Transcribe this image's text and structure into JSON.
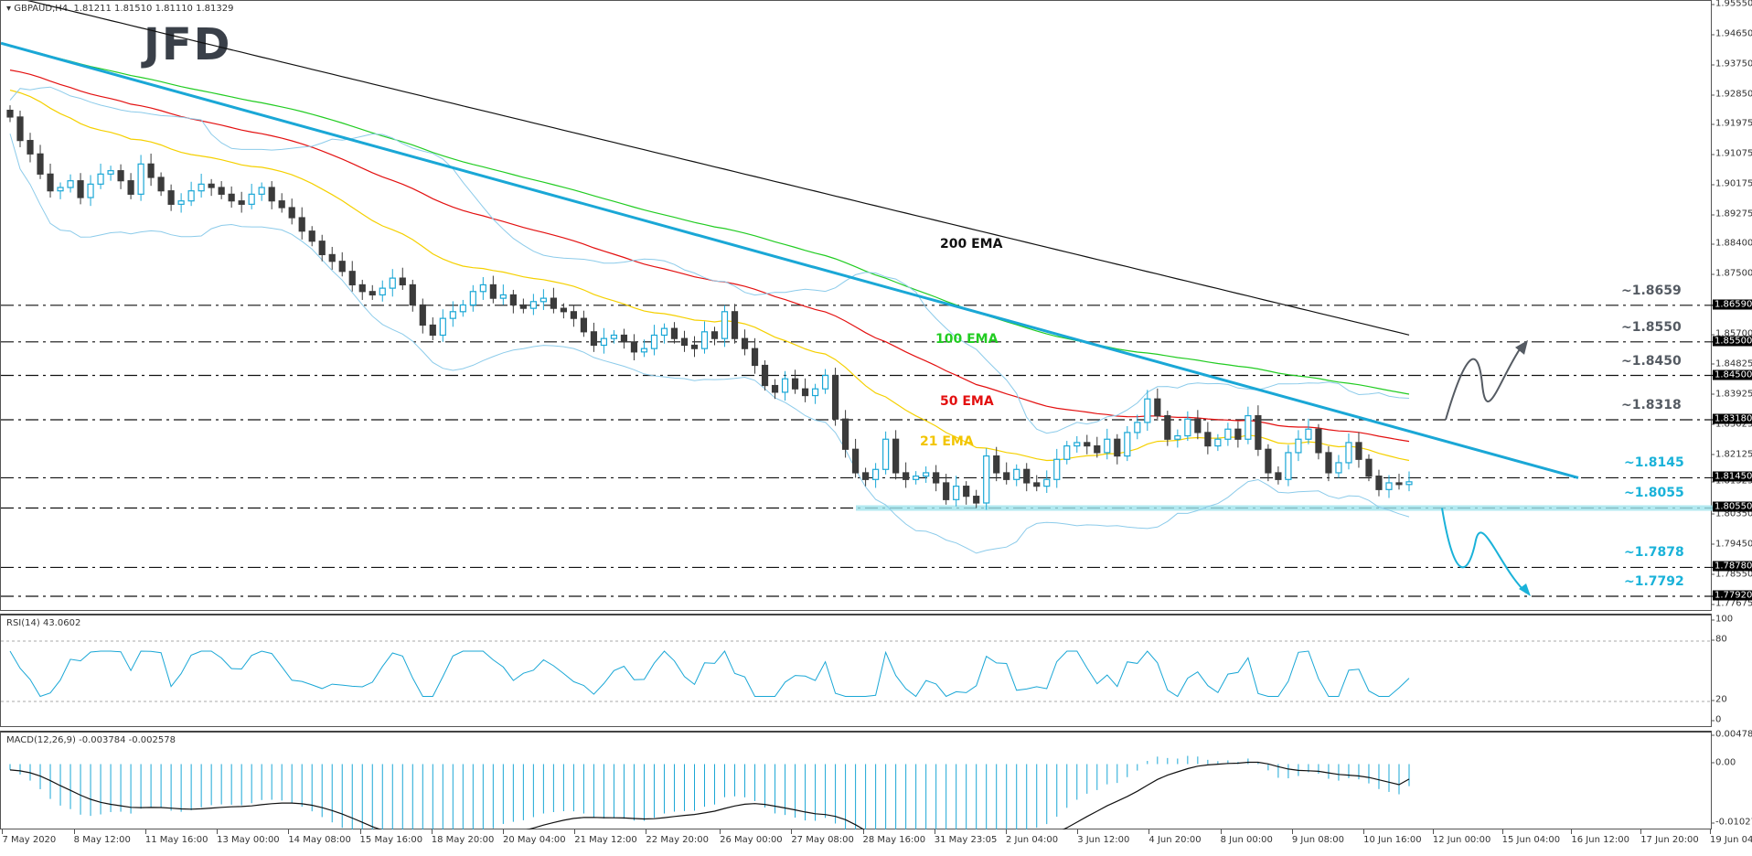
{
  "header": {
    "symbol": "GBPAUD,H4",
    "ohlc": "1.81211 1.81510 1.81110 1.81329",
    "logo": "JFD"
  },
  "chart_data": {
    "type": "candlestick",
    "title": "GBPAUD,H4",
    "last_ohlc": {
      "open": 1.81211,
      "high": 1.8151,
      "low": 1.8111,
      "close": 1.81329
    },
    "price_axis": {
      "range": [
        1.77675,
        1.9555
      ],
      "ticks": [
        "1.95550",
        "1.94650",
        "1.93750",
        "1.92850",
        "1.91975",
        "1.91075",
        "1.90175",
        "1.89275",
        "1.88400",
        "1.87500",
        "1.85700",
        "1.84825",
        "1.83925",
        "1.83025",
        "1.82125",
        "1.81325",
        "1.80350",
        "1.79450",
        "1.78550",
        "1.77675"
      ],
      "highlighted": [
        "1.86590",
        "1.85500",
        "1.84500",
        "1.83180",
        "1.81450",
        "1.80550",
        "1.78780",
        "1.77920"
      ]
    },
    "x_axis_labels": [
      "7 May 2020",
      "8 May 12:00",
      "11 May 16:00",
      "13 May 00:00",
      "14 May 08:00",
      "15 May 16:00",
      "18 May 20:00",
      "20 May 04:00",
      "21 May 12:00",
      "22 May 20:00",
      "26 May 00:00",
      "27 May 08:00",
      "28 May 16:00",
      "31 May 23:05",
      "2 Jun 04:00",
      "3 Jun 12:00",
      "4 Jun 20:00",
      "8 Jun 00:00",
      "9 Jun 08:00",
      "10 Jun 16:00",
      "12 Jun 00:00",
      "15 Jun 04:00",
      "16 Jun 12:00",
      "17 Jun 20:00",
      "19 Jun 04:00"
    ],
    "levels": [
      {
        "label": "~1.8659",
        "value": 1.8659,
        "color": "#555b63"
      },
      {
        "label": "~1.8550",
        "value": 1.855,
        "color": "#555b63"
      },
      {
        "label": "~1.8450",
        "value": 1.845,
        "color": "#555b63"
      },
      {
        "label": "~1.8318",
        "value": 1.8318,
        "color": "#555b63"
      },
      {
        "label": "~1.8145",
        "value": 1.8145,
        "color": "#1ab2d9"
      },
      {
        "label": "~1.8055",
        "value": 1.8055,
        "color": "#1ab2d9"
      },
      {
        "label": "~1.7878",
        "value": 1.7878,
        "color": "#1ab2d9"
      },
      {
        "label": "~1.7792",
        "value": 1.7792,
        "color": "#1ab2d9"
      }
    ],
    "indicators": {
      "ema": [
        {
          "name": "21 EMA",
          "color": "#f5d000"
        },
        {
          "name": "50 EMA",
          "color": "#e31010"
        },
        {
          "name": "100 EMA",
          "color": "#22cc22"
        },
        {
          "name": "200 EMA",
          "color": "#111111"
        }
      ],
      "bollinger_color": "#8ccbea",
      "downtrend_line": {
        "color": "#1aa7d6",
        "from_price": 1.944,
        "to_price": 1.8145
      }
    },
    "scenarios": {
      "bullish_arrow": {
        "color": "#555b63",
        "from": 1.8318,
        "via": 1.845,
        "to": 1.855
      },
      "bearish_arrow": {
        "color": "#1ab2d9",
        "from": 1.8055,
        "via": 1.7878,
        "to": 1.7792
      }
    },
    "close_series": [
      1.922,
      1.915,
      1.911,
      1.905,
      1.9,
      1.901,
      1.903,
      1.898,
      1.902,
      1.905,
      1.906,
      1.903,
      1.899,
      1.908,
      1.904,
      1.9,
      1.896,
      1.897,
      1.9,
      1.902,
      1.901,
      1.899,
      1.897,
      1.896,
      1.899,
      1.901,
      1.897,
      1.895,
      1.892,
      1.888,
      1.885,
      1.881,
      1.879,
      1.876,
      1.872,
      1.87,
      1.869,
      1.871,
      1.874,
      1.872,
      1.866,
      1.86,
      1.857,
      1.862,
      1.864,
      1.866,
      1.87,
      1.872,
      1.868,
      1.869,
      1.866,
      1.865,
      1.867,
      1.868,
      1.865,
      1.864,
      1.862,
      1.858,
      1.854,
      1.856,
      1.857,
      1.855,
      1.852,
      1.853,
      1.857,
      1.859,
      1.856,
      1.854,
      1.853,
      1.858,
      1.856,
      1.864,
      1.856,
      1.853,
      1.848,
      1.842,
      1.84,
      1.844,
      1.841,
      1.839,
      1.841,
      1.845,
      1.832,
      1.823,
      1.816,
      1.814,
      1.817,
      1.826,
      1.816,
      1.814,
      1.815,
      1.816,
      1.813,
      1.808,
      1.812,
      1.809,
      1.807,
      1.821,
      1.816,
      1.814,
      1.817,
      1.813,
      1.812,
      1.814,
      1.82,
      1.824,
      1.825,
      1.824,
      1.822,
      1.826,
      1.821,
      1.828,
      1.831,
      1.838,
      1.833,
      1.826,
      1.827,
      1.832,
      1.828,
      1.824,
      1.826,
      1.829,
      1.826,
      1.833,
      1.823,
      1.816,
      1.814,
      1.822,
      1.826,
      1.829,
      1.822,
      1.816,
      1.819,
      1.825,
      1.82,
      1.815,
      1.811,
      1.813,
      1.8125,
      1.8133
    ],
    "rsi": {
      "label": "RSI(14) 43.0602",
      "value": 43.0602,
      "levels": [
        80,
        20
      ],
      "axis": [
        "100",
        "80",
        "20",
        "0"
      ],
      "color": "#1aa7d6"
    },
    "macd": {
      "label": "MACD(12,26,9) -0.003784 -0.002578",
      "main": -0.003784,
      "signal": -0.002578,
      "axis": [
        "0.004789",
        "0.00",
        "-0.010278"
      ],
      "color": "#1aa7d6"
    }
  }
}
